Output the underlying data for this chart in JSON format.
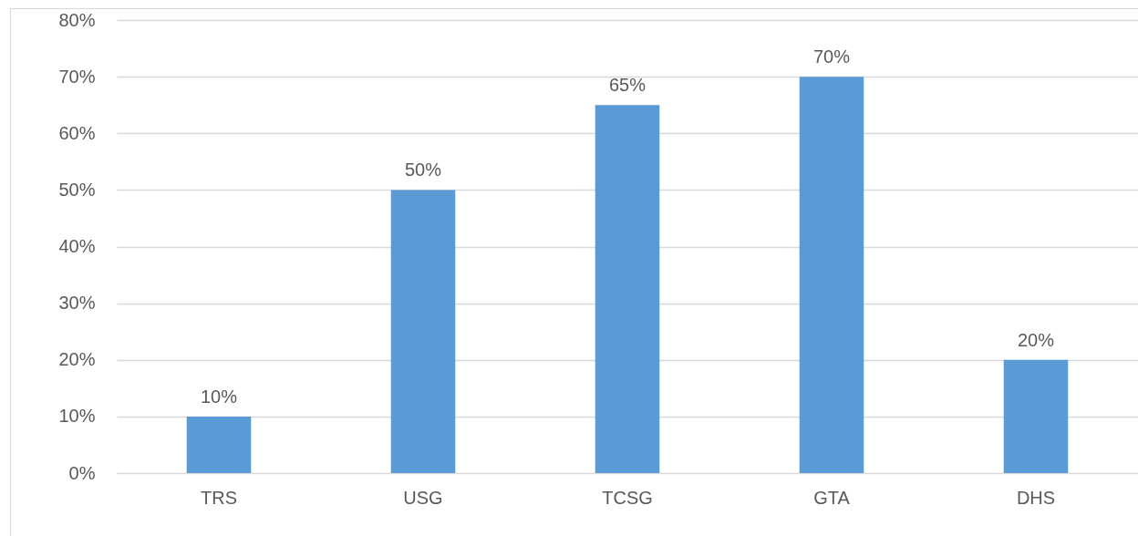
{
  "chart_data": {
    "type": "bar",
    "categories": [
      "TRS",
      "USG",
      "TCSG",
      "GTA",
      "DHS"
    ],
    "values": [
      10,
      50,
      65,
      70,
      20
    ],
    "color": "#5b9bd5",
    "value_labels": [
      "10%",
      "50%",
      "65%",
      "70%",
      "20%"
    ],
    "ylim": [
      0,
      80
    ],
    "yticks": [
      {
        "value": 0,
        "label": "0%"
      },
      {
        "value": 10,
        "label": "10%"
      },
      {
        "value": 20,
        "label": "20%"
      },
      {
        "value": 30,
        "label": "30%"
      },
      {
        "value": 40,
        "label": "40%"
      },
      {
        "value": 50,
        "label": "50%"
      },
      {
        "value": 60,
        "label": "60%"
      },
      {
        "value": 70,
        "label": "70%"
      },
      {
        "value": 80,
        "label": "80%"
      }
    ],
    "grid": "y"
  }
}
